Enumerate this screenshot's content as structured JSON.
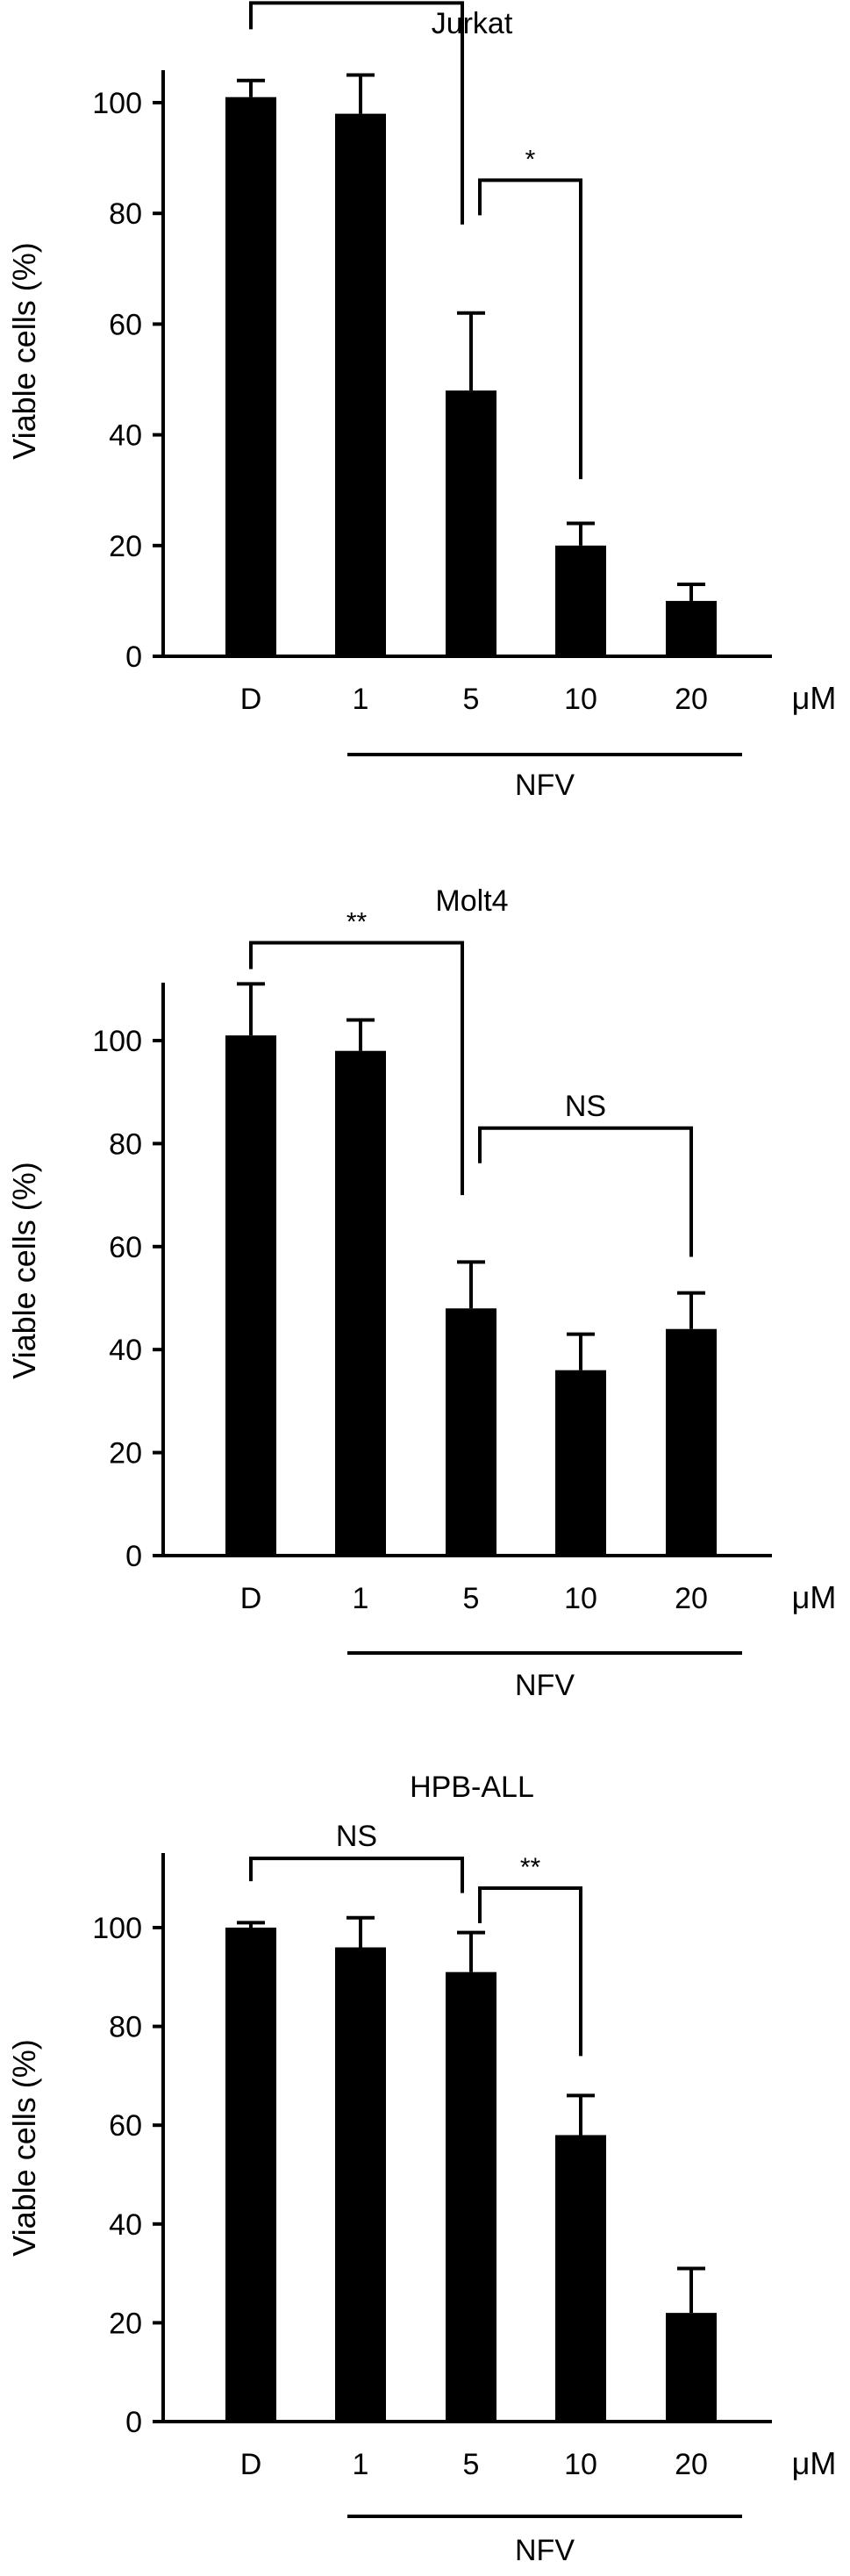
{
  "figure": {
    "unit_label": "μM",
    "group_label": "NFV"
  },
  "chart_data": [
    {
      "type": "bar",
      "title": "Jurkat",
      "ylabel": "Viable cells (%)",
      "xlabel": "",
      "categories": [
        "D",
        "1",
        "5",
        "10",
        "20"
      ],
      "values": [
        101,
        98,
        48,
        20,
        10
      ],
      "errors": [
        3,
        7,
        14,
        4,
        3
      ],
      "ylim": [
        0,
        120
      ],
      "yticks": [
        0,
        20,
        40,
        60,
        80,
        100
      ],
      "bar_color": "#000000",
      "group_bar": {
        "label": "NFV",
        "from": "1",
        "to": "20"
      },
      "annotations": [
        {
          "from": "D",
          "to": "5",
          "label": "**"
        },
        {
          "from": "5",
          "to": "10",
          "label": "*"
        }
      ]
    },
    {
      "type": "bar",
      "title": "Molt4",
      "ylabel": "Viable cells (%)",
      "xlabel": "",
      "categories": [
        "D",
        "1",
        "5",
        "10",
        "20"
      ],
      "values": [
        101,
        98,
        48,
        36,
        44
      ],
      "errors": [
        10,
        6,
        9,
        7,
        7
      ],
      "ylim": [
        0,
        120
      ],
      "yticks": [
        0,
        20,
        40,
        60,
        80,
        100
      ],
      "bar_color": "#000000",
      "group_bar": {
        "label": "NFV",
        "from": "1",
        "to": "20"
      },
      "annotations": [
        {
          "from": "D",
          "to": "5",
          "label": "**"
        },
        {
          "from": "5",
          "to": "20",
          "label": "NS"
        }
      ]
    },
    {
      "type": "bar",
      "title": "HPB-ALL",
      "ylabel": "Viable cells (%)",
      "xlabel": "",
      "categories": [
        "D",
        "1",
        "5",
        "10",
        "20"
      ],
      "values": [
        100,
        96,
        91,
        58,
        22
      ],
      "errors": [
        1,
        6,
        8,
        8,
        9
      ],
      "ylim": [
        0,
        120
      ],
      "yticks": [
        0,
        20,
        40,
        60,
        80,
        100
      ],
      "bar_color": "#000000",
      "group_bar": {
        "label": "NFV",
        "from": "1",
        "to": "20"
      },
      "annotations": [
        {
          "from": "D",
          "to": "5",
          "label": "NS"
        },
        {
          "from": "5",
          "to": "10",
          "label": "**"
        }
      ]
    }
  ]
}
